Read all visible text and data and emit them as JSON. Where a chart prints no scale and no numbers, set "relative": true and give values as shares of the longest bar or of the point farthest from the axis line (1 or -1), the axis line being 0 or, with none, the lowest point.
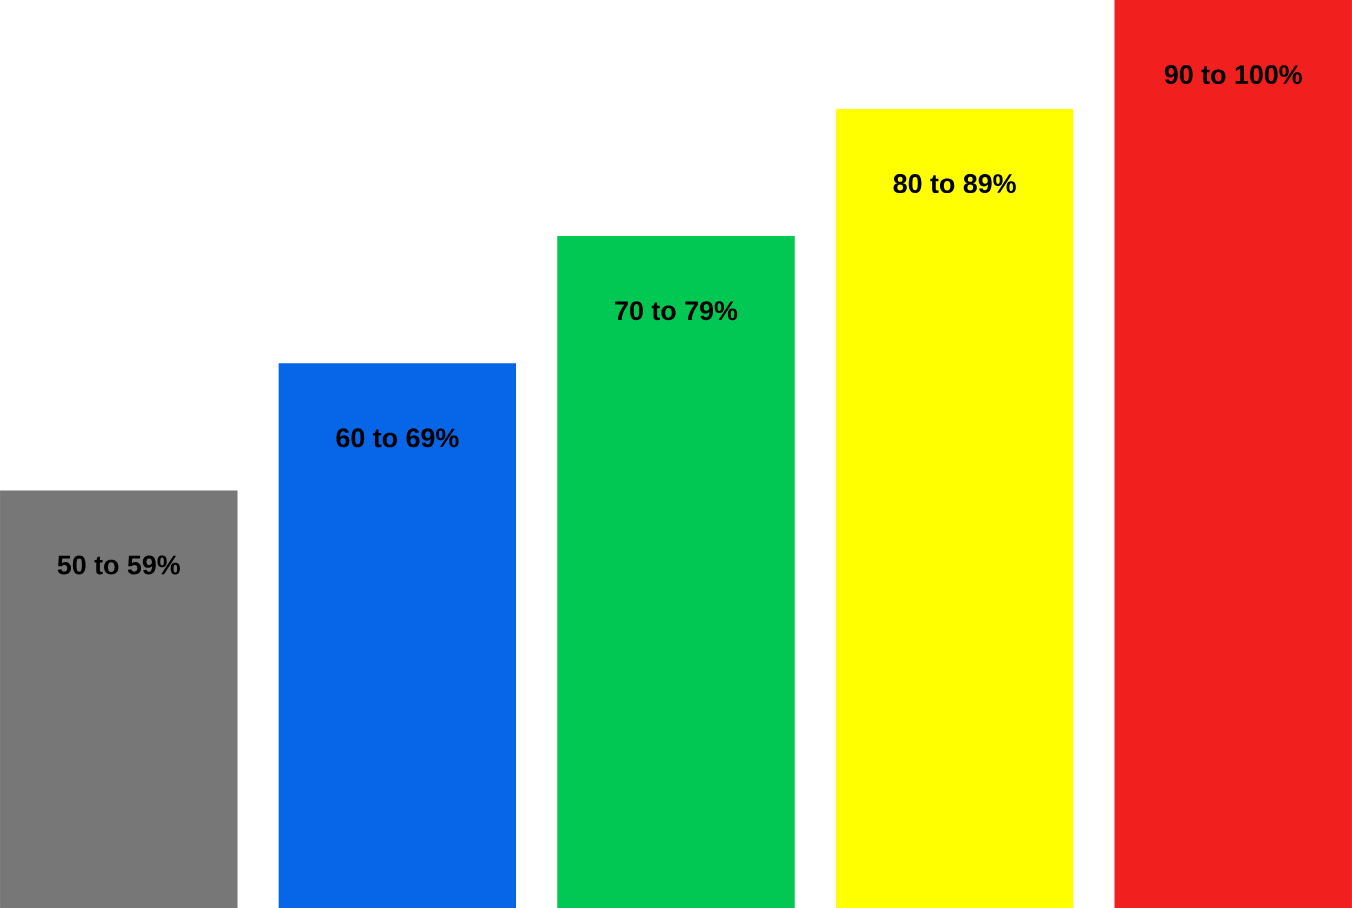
{
  "chart_data": {
    "type": "bar",
    "relative": true,
    "categories": [
      "50 to 59%",
      "60 to 69%",
      "70 to 79%",
      "80 to 89%",
      "90 to 100%"
    ],
    "values": [
      0.46,
      0.6,
      0.74,
      0.88,
      1.0
    ],
    "colors": [
      "#777777",
      "#0766e8",
      "#00c853",
      "#ffff00",
      "#f21f1f"
    ]
  }
}
